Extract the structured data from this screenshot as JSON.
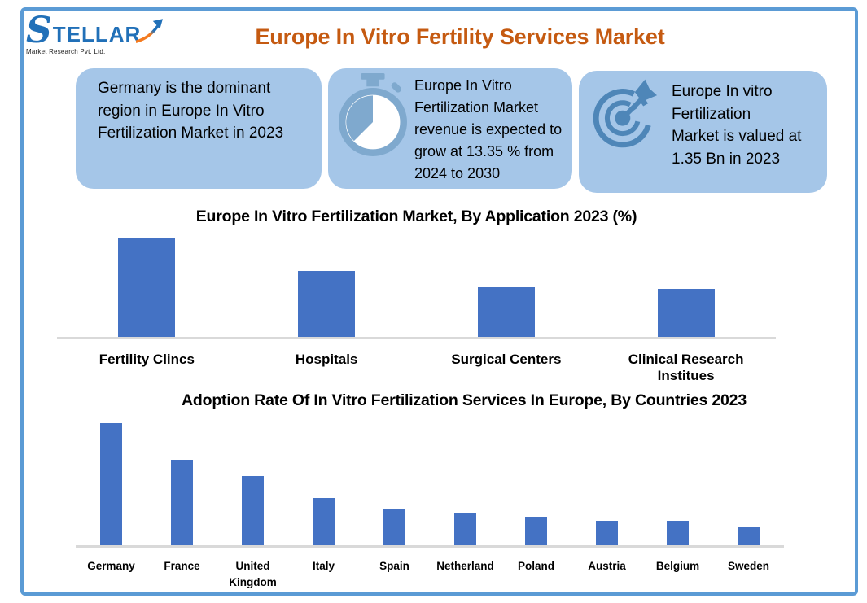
{
  "page": {
    "title": "Europe In Vitro Fertility Services Market",
    "colors": {
      "title_orange": "#C55A11",
      "frame_blue": "#5B9BD5",
      "callout_bg": "#A5C6E8",
      "bar_blue": "#4472C4",
      "baseline_gray": "#D9D9D9",
      "stopwatch_icon_blue": "#7FA9CE",
      "target_icon_blue": "#4E86B8",
      "logo_blue": "#2170B8",
      "logo_arrow_orange": "#F47B20"
    }
  },
  "logo": {
    "brand": "STELLAR",
    "tagline": "Market Research Pvt. Ltd."
  },
  "callouts": [
    {
      "icon": null,
      "text": "Germany is the dominant region in Europe In Vitro Fertilization Market in 2023"
    },
    {
      "icon": "stopwatch-icon",
      "text": "Europe In Vitro Fertilization Market revenue is expected to grow at 13.35 % from 2024 to 2030"
    },
    {
      "icon": "target-icon",
      "text": "Europe In vitro Fertilization Market is valued at 1.35 Bn in 2023"
    }
  ],
  "chart_data": [
    {
      "type": "bar",
      "title": "Europe In Vitro Fertilization Market, By Application 2023 (%)",
      "categories": [
        "Fertility Clincs",
        "Hospitals",
        "Surgical Centers",
        "Clinical Research Institues"
      ],
      "values": [
        45,
        30,
        22.5,
        22
      ],
      "xlabel": "",
      "ylabel": "",
      "ylim": [
        0,
        50
      ],
      "grid": false,
      "legend": false,
      "y_axis_visible": false,
      "value_labels_visible": false,
      "bar_color": "#4472C4"
    },
    {
      "type": "bar",
      "title": "Adoption Rate Of In Vitro Fertilization Services In Europe, By Countries 2023",
      "categories": [
        "Germany",
        "France",
        "United Kingdom",
        "Italy",
        "Spain",
        "Netherland",
        "Poland",
        "Austria",
        "Belgium",
        "Sweden"
      ],
      "values": [
        30,
        21,
        17,
        11.5,
        9,
        8,
        7,
        6,
        6,
        4.5
      ],
      "xlabel": "",
      "ylabel": "",
      "ylim": [
        0,
        32
      ],
      "grid": false,
      "legend": false,
      "y_axis_visible": false,
      "value_labels_visible": false,
      "bar_color": "#4472C4"
    }
  ]
}
